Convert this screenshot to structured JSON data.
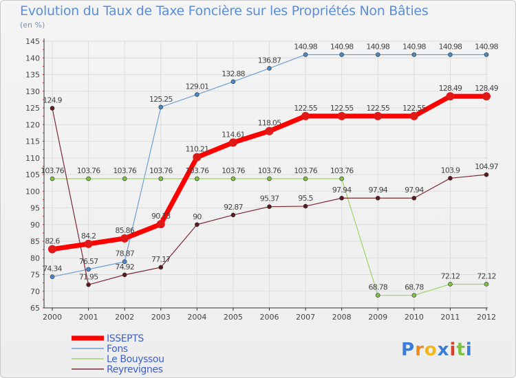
{
  "header": {
    "title": "Evolution du Taux de Taxe Foncière sur les Propriétés Non Bâties",
    "subtitle": "(en %)"
  },
  "logo": {
    "letters": [
      "P",
      "r",
      "o",
      "x",
      "i",
      "t",
      "i"
    ],
    "colors": [
      "#3b7dd8",
      "#f08a1c",
      "#f0b81c",
      "#3b7dd8",
      "#d8402c",
      "#7fc241",
      "#3b7dd8"
    ]
  },
  "chart_data": {
    "type": "line",
    "title": "Evolution du Taux de Taxe Foncière sur les Propriétés Non Bâties",
    "ylabel": "(en %)",
    "ylim": [
      65,
      145
    ],
    "yticks": [
      65,
      70,
      75,
      80,
      85,
      90,
      95,
      100,
      105,
      110,
      115,
      120,
      125,
      130,
      135,
      140,
      145
    ],
    "x": [
      "2000",
      "2001",
      "2002",
      "2003",
      "2004",
      "2005",
      "2006",
      "2007",
      "2008",
      "2009",
      "2010",
      "2011",
      "2012"
    ],
    "series": [
      {
        "name": "ISSEPTS",
        "color": "#ff0000",
        "marker": "#e01818",
        "width": 7,
        "r": 6,
        "values": [
          82.6,
          84.2,
          85.86,
          90.13,
          110.21,
          114.61,
          118.05,
          122.55,
          122.55,
          122.55,
          122.55,
          128.49,
          128.49
        ],
        "labels": [
          "82.6",
          "84.2",
          "85.86",
          "90.13",
          "110.21",
          "114.61",
          "118.05",
          "122.55",
          "122.55",
          "122.55",
          "122.55",
          "128.49",
          "128.49"
        ]
      },
      {
        "name": "Fons",
        "color": "#6e9fd0",
        "marker": "#4a86c8",
        "width": 1.2,
        "r": 3,
        "values": [
          74.34,
          76.57,
          78.87,
          125.25,
          129.01,
          132.88,
          136.87,
          140.98,
          140.98,
          140.98,
          140.98,
          140.98,
          140.98
        ],
        "labels": [
          "74.34",
          "76.57",
          "78.87",
          "125.25",
          "129.01",
          "132.88",
          "136.87",
          "140.98",
          "140.98",
          "140.98",
          "140.98",
          "140.98",
          "140.98"
        ]
      },
      {
        "name": "Le Bouyssou",
        "color": "#9cd36b",
        "marker": "#7fc241",
        "width": 1.2,
        "r": 3,
        "values": [
          103.76,
          103.76,
          103.76,
          103.76,
          103.76,
          103.76,
          103.76,
          103.76,
          103.76,
          68.78,
          68.78,
          72.12,
          72.12
        ],
        "labels": [
          "103.76",
          "103.76",
          "103.76",
          "103.76",
          "103.76",
          "103.76",
          "103.76",
          "103.76",
          "103.76",
          "68.78",
          "68.78",
          "72.12",
          "72.12"
        ]
      },
      {
        "name": "Reyrevignes",
        "color": "#7a2a32",
        "marker": "#5c1a20",
        "width": 1.2,
        "r": 3,
        "values": [
          124.9,
          71.95,
          74.92,
          77.17,
          90,
          92.87,
          95.37,
          95.5,
          97.94,
          97.94,
          97.94,
          103.9,
          104.97
        ],
        "labels": [
          "124.9",
          "71.95",
          "74.92",
          "77.17",
          "90",
          "92.87",
          "95.37",
          "95.5",
          "97.94",
          "97.94",
          "97.94",
          "103.9",
          "104.97"
        ]
      }
    ]
  }
}
